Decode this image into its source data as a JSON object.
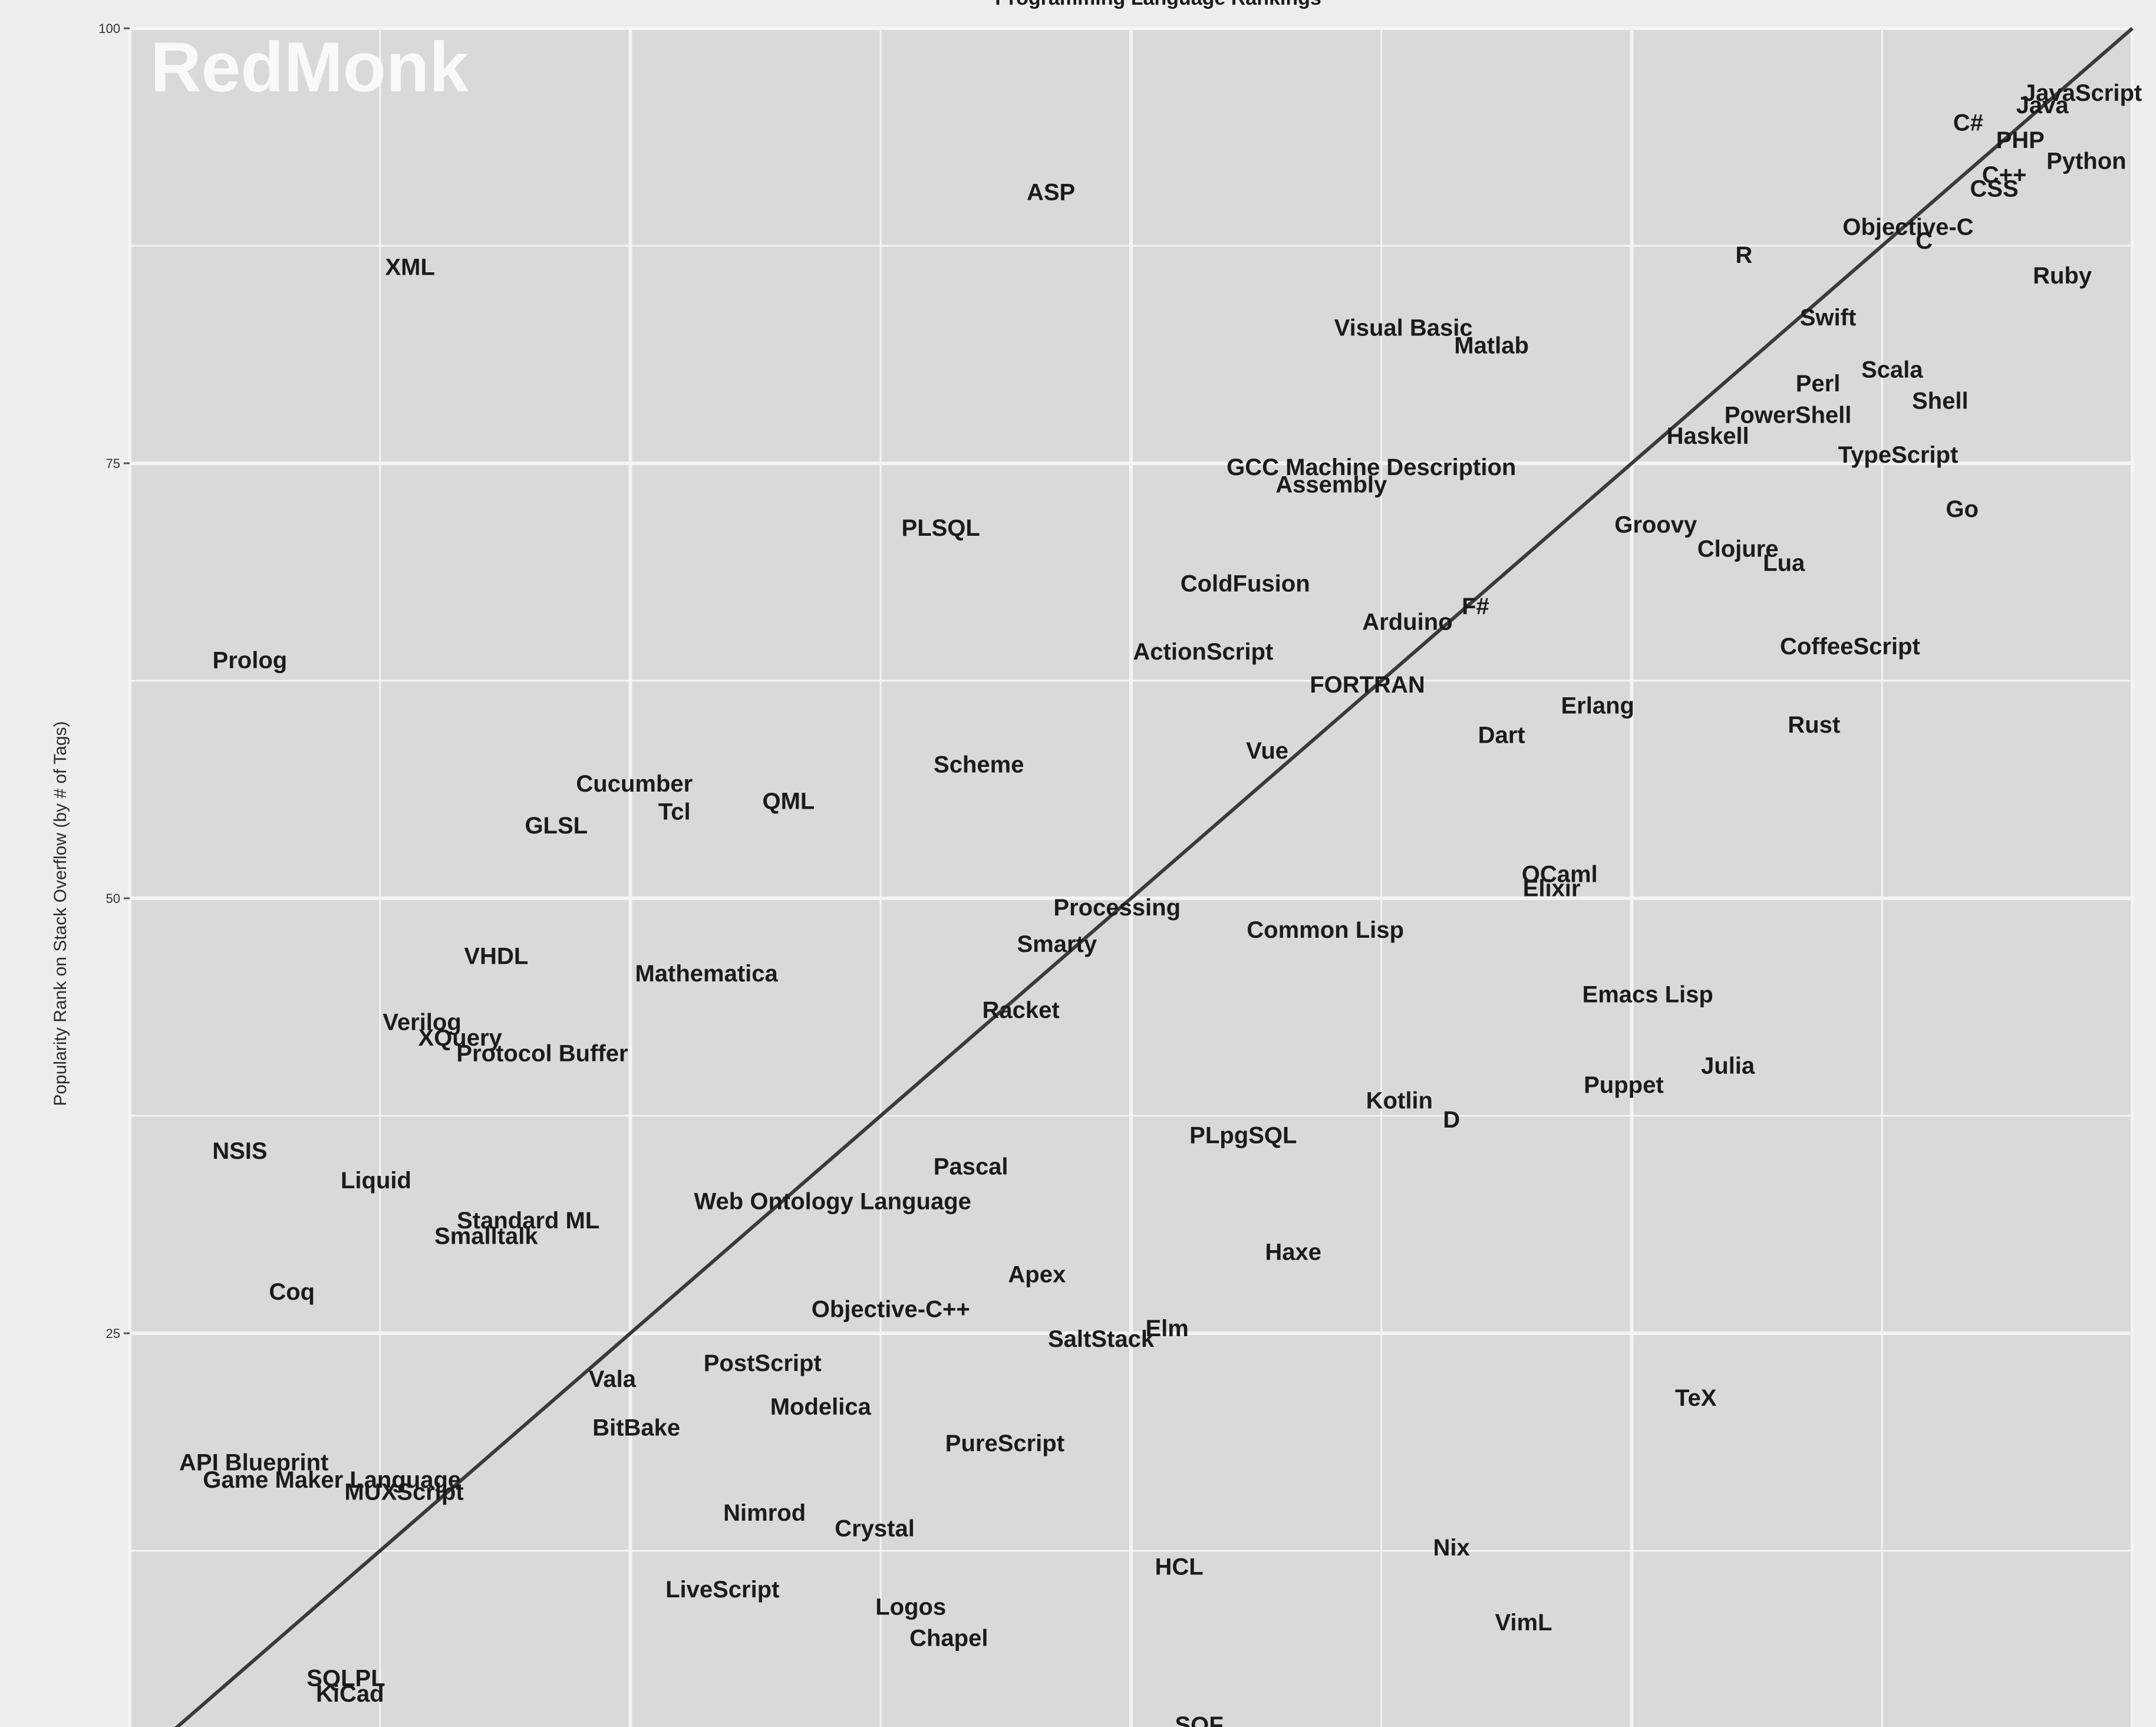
{
  "chart_data": {
    "type": "scatter",
    "title": "Programming Language Rankings",
    "watermark": "RedMonk",
    "ylabel": "Popularity Rank on Stack Overflow (by # of Tags)",
    "xlabel": "",
    "ylim": [
      0,
      100
    ],
    "xlim": [
      0,
      100
    ],
    "y_ticks": [
      25,
      50,
      75,
      100
    ],
    "grid": true,
    "trend_line": true,
    "colors": {
      "panel_background": "#d9d9d9",
      "gridline": "#f4f4f4",
      "label": "#1b1b1b",
      "trend_line": "#3a3a3a",
      "watermark": "#ffffff"
    },
    "points": [
      {
        "label": "JavaScript",
        "x": 97.5,
        "y": 96.3
      },
      {
        "label": "Java",
        "x": 95.5,
        "y": 95.6
      },
      {
        "label": "C#",
        "x": 91.8,
        "y": 94.6
      },
      {
        "label": "PHP",
        "x": 94.4,
        "y": 93.6
      },
      {
        "label": "Python",
        "x": 97.7,
        "y": 92.4
      },
      {
        "label": "C++",
        "x": 93.6,
        "y": 91.6
      },
      {
        "label": "CSS",
        "x": 93.1,
        "y": 90.8
      },
      {
        "label": "Objective-C",
        "x": 88.8,
        "y": 88.6
      },
      {
        "label": "C",
        "x": 89.6,
        "y": 87.8
      },
      {
        "label": "R",
        "x": 80.6,
        "y": 87.0
      },
      {
        "label": "Ruby",
        "x": 96.5,
        "y": 85.8
      },
      {
        "label": "ASP",
        "x": 46.0,
        "y": 90.6
      },
      {
        "label": "XML",
        "x": 14.0,
        "y": 86.3
      },
      {
        "label": "Swift",
        "x": 84.8,
        "y": 83.4
      },
      {
        "label": "Visual Basic",
        "x": 63.6,
        "y": 82.8
      },
      {
        "label": "Matlab",
        "x": 68.0,
        "y": 81.8
      },
      {
        "label": "Scala",
        "x": 88.0,
        "y": 80.4
      },
      {
        "label": "Perl",
        "x": 84.3,
        "y": 79.6
      },
      {
        "label": "Shell",
        "x": 90.4,
        "y": 78.6
      },
      {
        "label": "PowerShell",
        "x": 82.8,
        "y": 77.8
      },
      {
        "label": "Haskell",
        "x": 78.8,
        "y": 76.6
      },
      {
        "label": "TypeScript",
        "x": 88.3,
        "y": 75.5
      },
      {
        "label": "GCC Machine Description",
        "x": 62.0,
        "y": 74.8
      },
      {
        "label": "Assembly",
        "x": 60.0,
        "y": 73.8
      },
      {
        "label": "Go",
        "x": 91.5,
        "y": 72.4
      },
      {
        "label": "PLSQL",
        "x": 40.5,
        "y": 71.3
      },
      {
        "label": "Groovy",
        "x": 76.2,
        "y": 71.5
      },
      {
        "label": "Clojure",
        "x": 80.3,
        "y": 70.1
      },
      {
        "label": "Lua",
        "x": 82.6,
        "y": 69.3
      },
      {
        "label": "ColdFusion",
        "x": 55.7,
        "y": 68.1
      },
      {
        "label": "F#",
        "x": 67.2,
        "y": 66.8
      },
      {
        "label": "Arduino",
        "x": 63.8,
        "y": 65.9
      },
      {
        "label": "Prolog",
        "x": 6.0,
        "y": 63.7
      },
      {
        "label": "ActionScript",
        "x": 53.6,
        "y": 64.2
      },
      {
        "label": "CoffeeScript",
        "x": 85.9,
        "y": 64.5
      },
      {
        "label": "FORTRAN",
        "x": 61.8,
        "y": 62.3
      },
      {
        "label": "Erlang",
        "x": 73.3,
        "y": 61.1
      },
      {
        "label": "Dart",
        "x": 68.5,
        "y": 59.4
      },
      {
        "label": "Rust",
        "x": 84.1,
        "y": 60.0
      },
      {
        "label": "Vue",
        "x": 56.8,
        "y": 58.5
      },
      {
        "label": "Scheme",
        "x": 42.4,
        "y": 57.7
      },
      {
        "label": "Cucumber",
        "x": 25.2,
        "y": 56.6
      },
      {
        "label": "QML",
        "x": 32.9,
        "y": 55.6
      },
      {
        "label": "Tcl",
        "x": 27.2,
        "y": 55.0
      },
      {
        "label": "GLSL",
        "x": 21.3,
        "y": 54.2
      },
      {
        "label": "OCaml",
        "x": 71.4,
        "y": 51.4
      },
      {
        "label": "Elixir",
        "x": 71.0,
        "y": 50.6
      },
      {
        "label": "Processing",
        "x": 49.3,
        "y": 49.5
      },
      {
        "label": "Common Lisp",
        "x": 59.7,
        "y": 48.2
      },
      {
        "label": "Smarty",
        "x": 46.3,
        "y": 47.4
      },
      {
        "label": "VHDL",
        "x": 18.3,
        "y": 46.7
      },
      {
        "label": "Mathematica",
        "x": 28.8,
        "y": 45.7
      },
      {
        "label": "Emacs Lisp",
        "x": 75.8,
        "y": 44.5
      },
      {
        "label": "Racket",
        "x": 44.5,
        "y": 43.6
      },
      {
        "label": "Verilog",
        "x": 14.6,
        "y": 42.9
      },
      {
        "label": "XQuery",
        "x": 16.5,
        "y": 42.0
      },
      {
        "label": "Protocol Buffer",
        "x": 20.6,
        "y": 41.1
      },
      {
        "label": "Julia",
        "x": 79.8,
        "y": 40.4
      },
      {
        "label": "Puppet",
        "x": 74.6,
        "y": 39.3
      },
      {
        "label": "Kotlin",
        "x": 63.4,
        "y": 38.4
      },
      {
        "label": "D",
        "x": 66.0,
        "y": 37.3
      },
      {
        "label": "PLpgSQL",
        "x": 55.6,
        "y": 36.4
      },
      {
        "label": "NSIS",
        "x": 5.5,
        "y": 35.5
      },
      {
        "label": "Pascal",
        "x": 42.0,
        "y": 34.6
      },
      {
        "label": "Liquid",
        "x": 12.3,
        "y": 33.8
      },
      {
        "label": "Web Ontology Language",
        "x": 35.1,
        "y": 32.6
      },
      {
        "label": "Standard ML",
        "x": 19.9,
        "y": 31.5
      },
      {
        "label": "Smalltalk",
        "x": 17.8,
        "y": 30.6
      },
      {
        "label": "Haxe",
        "x": 58.1,
        "y": 29.7
      },
      {
        "label": "Apex",
        "x": 45.3,
        "y": 28.4
      },
      {
        "label": "Coq",
        "x": 8.1,
        "y": 27.4
      },
      {
        "label": "Objective-C++",
        "x": 38.0,
        "y": 26.4
      },
      {
        "label": "Elm",
        "x": 51.8,
        "y": 25.3
      },
      {
        "label": "SaltStack",
        "x": 48.5,
        "y": 24.7
      },
      {
        "label": "PostScript",
        "x": 31.6,
        "y": 23.3
      },
      {
        "label": "Vala",
        "x": 24.1,
        "y": 22.4
      },
      {
        "label": "TeX",
        "x": 78.2,
        "y": 21.3
      },
      {
        "label": "Modelica",
        "x": 34.5,
        "y": 20.8
      },
      {
        "label": "BitBake",
        "x": 25.3,
        "y": 19.6
      },
      {
        "label": "PureScript",
        "x": 43.7,
        "y": 18.7
      },
      {
        "label": "API Blueprint",
        "x": 6.2,
        "y": 17.6
      },
      {
        "label": "Game Maker Language",
        "x": 10.1,
        "y": 16.6
      },
      {
        "label": "MUXScript",
        "x": 13.7,
        "y": 15.9
      },
      {
        "label": "Nimrod",
        "x": 31.7,
        "y": 14.7
      },
      {
        "label": "Crystal",
        "x": 37.2,
        "y": 13.8
      },
      {
        "label": "Nix",
        "x": 66.0,
        "y": 12.7
      },
      {
        "label": "HCL",
        "x": 52.4,
        "y": 11.6
      },
      {
        "label": "LiveScript",
        "x": 29.6,
        "y": 10.3
      },
      {
        "label": "Logos",
        "x": 39.0,
        "y": 9.3
      },
      {
        "label": "VimL",
        "x": 69.6,
        "y": 8.4
      },
      {
        "label": "Chapel",
        "x": 40.9,
        "y": 7.5
      },
      {
        "label": "SQLPL",
        "x": 10.8,
        "y": 5.2
      },
      {
        "label": "KiCad",
        "x": 11.0,
        "y": 4.3
      },
      {
        "label": "SQF",
        "x": 53.4,
        "y": 2.5
      }
    ]
  }
}
